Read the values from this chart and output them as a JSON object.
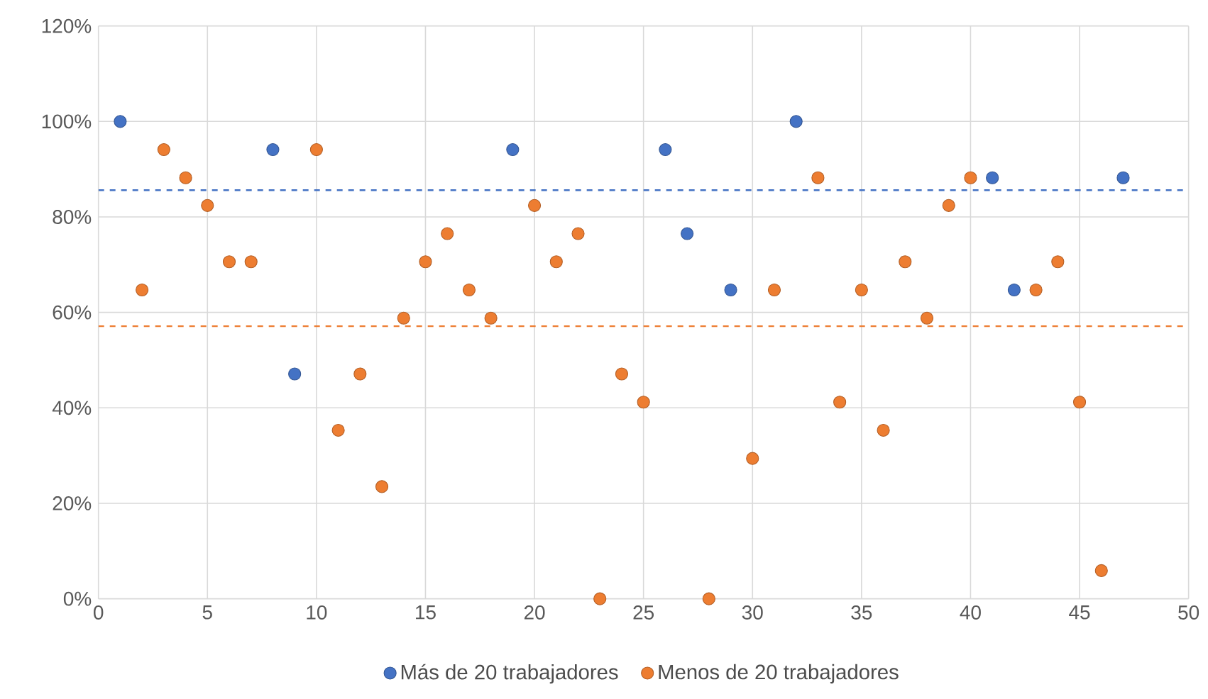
{
  "chart_data": {
    "type": "scatter",
    "marker": "circle",
    "grid": true,
    "legend": "bottom",
    "xlim": [
      0,
      50
    ],
    "xticks": [
      0,
      5,
      10,
      15,
      20,
      25,
      30,
      35,
      40,
      45,
      50
    ],
    "ylim": [
      0,
      120
    ],
    "yticks": [
      {
        "value": 0,
        "label": "0%"
      },
      {
        "value": 20,
        "label": "20%"
      },
      {
        "value": 40,
        "label": "40%"
      },
      {
        "value": 60,
        "label": "60%"
      },
      {
        "value": 80,
        "label": "80%"
      },
      {
        "value": 100,
        "label": "100%"
      },
      {
        "value": 120,
        "label": "120%"
      }
    ],
    "series": [
      {
        "name": "Más de 20 trabajadores",
        "color": "#4472c4",
        "x": [
          1,
          8,
          9,
          19,
          26,
          27,
          29,
          32,
          41,
          42,
          47
        ],
        "values": [
          100,
          94.1,
          47.1,
          94.1,
          94.1,
          76.5,
          64.7,
          100,
          88.2,
          64.7,
          88.2
        ]
      },
      {
        "name": "Menos de 20 trabajadores",
        "color": "#ed7d31",
        "x": [
          2,
          3,
          4,
          5,
          6,
          7,
          10,
          11,
          12,
          13,
          14,
          15,
          16,
          17,
          18,
          20,
          21,
          22,
          23,
          24,
          25,
          28,
          30,
          31,
          33,
          34,
          35,
          36,
          37,
          38,
          39,
          40,
          43,
          44,
          45,
          46
        ],
        "values": [
          64.7,
          94.1,
          88.2,
          82.4,
          70.6,
          70.6,
          94.1,
          35.3,
          47.1,
          23.5,
          58.8,
          70.6,
          76.5,
          64.7,
          58.8,
          82.4,
          70.6,
          76.5,
          0,
          47.1,
          41.2,
          0,
          29.4,
          64.7,
          88.2,
          41.2,
          64.7,
          35.3,
          70.6,
          58.8,
          82.4,
          88.2,
          64.7,
          70.6,
          41.2,
          5.9
        ]
      }
    ],
    "ref_lines": [
      {
        "axis": "y",
        "value": 85.6,
        "color": "#4472c4",
        "line_style": "dashed"
      },
      {
        "axis": "y",
        "value": 57.1,
        "color": "#ed7d31",
        "line_style": "dashed"
      }
    ]
  }
}
